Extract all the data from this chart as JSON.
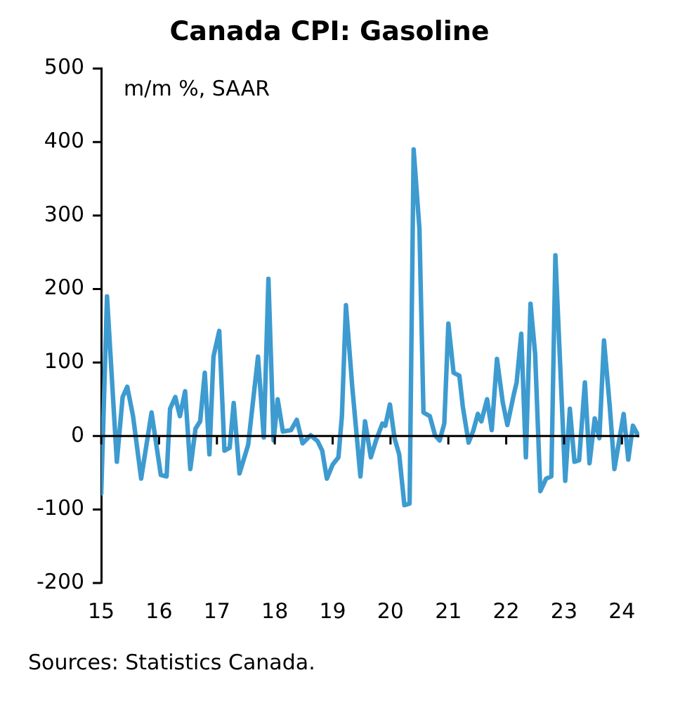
{
  "chart_data": {
    "type": "line",
    "title": "Canada CPI: Gasoline",
    "ylabel": "m/m %, SAAR",
    "annotations": [
      "Sources: Statistics Canada."
    ],
    "x": [
      15.0,
      15.1,
      15.27,
      15.37,
      15.45,
      15.55,
      15.69,
      15.87,
      16.03,
      16.13,
      16.19,
      16.28,
      16.36,
      16.45,
      16.54,
      16.63,
      16.71,
      16.79,
      16.87,
      16.94,
      17.04,
      17.13,
      17.22,
      17.29,
      17.39,
      17.54,
      17.71,
      17.81,
      17.89,
      17.98,
      18.05,
      18.14,
      18.28,
      18.38,
      18.48,
      18.62,
      18.74,
      18.82,
      18.9,
      19.0,
      19.1,
      19.16,
      19.23,
      19.34,
      19.48,
      19.56,
      19.66,
      19.75,
      19.86,
      19.91,
      19.99,
      20.07,
      20.15,
      20.24,
      20.33,
      20.4,
      20.5,
      20.57,
      20.68,
      20.77,
      20.85,
      20.93,
      21.0,
      21.09,
      21.19,
      21.25,
      21.35,
      21.43,
      21.51,
      21.57,
      21.67,
      21.75,
      21.84,
      21.94,
      22.02,
      22.13,
      22.18,
      22.26,
      22.34,
      22.42,
      22.5,
      22.59,
      22.69,
      22.78,
      22.85,
      23.02,
      23.1,
      23.18,
      23.26,
      23.36,
      23.44,
      23.53,
      23.61,
      23.69,
      23.79,
      23.87,
      24.03,
      24.11,
      24.19,
      24.28
    ],
    "series": [
      {
        "color": "#3d9bd0",
        "values": [
          -78,
          190,
          -35,
          53,
          67,
          27,
          -58,
          32,
          -53,
          -55,
          37,
          53,
          27,
          61,
          -45,
          10,
          20,
          86,
          -25,
          108,
          143,
          -20,
          -16,
          45,
          -51,
          -12,
          108,
          -2,
          214,
          -6,
          50,
          6,
          8,
          22,
          -10,
          1,
          -7,
          -20,
          -58,
          -39,
          -29,
          27,
          178,
          66,
          -55,
          20,
          -29,
          -6,
          17,
          14,
          43,
          -3,
          -25,
          -94,
          -92,
          390,
          282,
          32,
          27,
          1,
          -6,
          17,
          153,
          86,
          82,
          40,
          -9,
          7,
          30,
          20,
          50,
          8,
          105,
          46,
          15,
          56,
          73,
          139,
          -29,
          180,
          112,
          -75,
          -58,
          -55,
          246,
          -61,
          37,
          -35,
          -33,
          73,
          -37,
          24,
          -3,
          130,
          40,
          -45,
          30,
          -32,
          14,
          1
        ]
      }
    ],
    "xlim": [
      15,
      24.3
    ],
    "xticks": [
      15,
      16,
      17,
      18,
      19,
      20,
      21,
      22,
      23,
      24
    ],
    "ylim": [
      -200,
      500
    ],
    "yticks": [
      -200,
      -100,
      0,
      100,
      200,
      300,
      400,
      500
    ],
    "ref_lines": [
      {
        "axis": "y",
        "value": 0,
        "color": "#000000",
        "line_style": "solid"
      }
    ],
    "grid": false,
    "legend": false,
    "marker": "none",
    "line_style": "solid"
  }
}
